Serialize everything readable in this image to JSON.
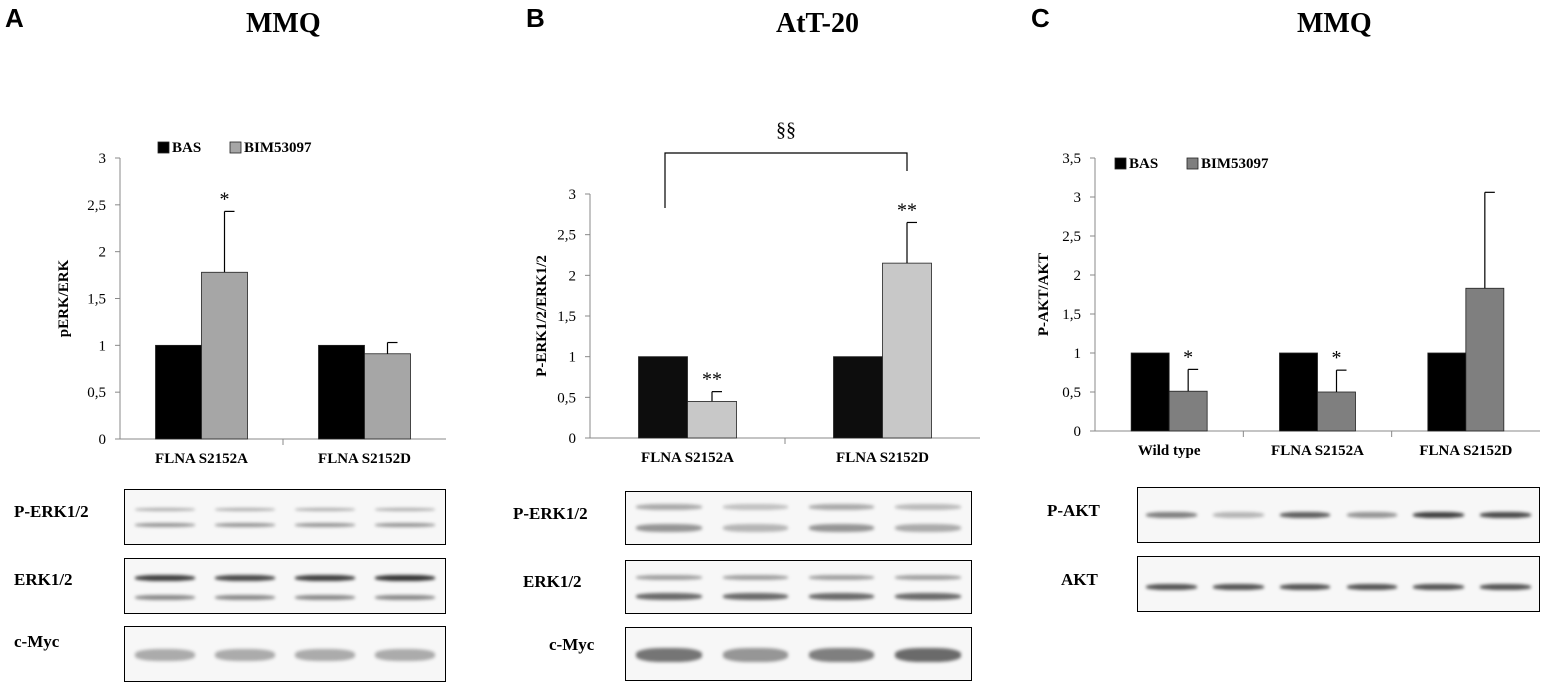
{
  "panels": [
    {
      "letter": "A",
      "title": "MMQ",
      "blot_labels": [
        "P-ERK1/2",
        "ERK1/2",
        "c-Myc"
      ]
    },
    {
      "letter": "B",
      "title": "AtT-20",
      "blot_labels": [
        "P-ERK1/2",
        "ERK1/2",
        "c-Myc"
      ]
    },
    {
      "letter": "C",
      "title": "MMQ",
      "blot_labels": [
        "P-AKT",
        "AKT"
      ]
    }
  ],
  "chart_data": [
    {
      "type": "bar",
      "ylabel": "pERK/ERK",
      "ylim": [
        0,
        3
      ],
      "yticks": [
        "0",
        "0,5",
        "1",
        "1,5",
        "2",
        "2,5",
        "3"
      ],
      "categories": [
        "FLNA S2152A",
        "FLNA S2152D"
      ],
      "series": [
        {
          "name": "BAS",
          "color": "#000000",
          "values": [
            1.0,
            1.0
          ],
          "errors": [
            0,
            0
          ]
        },
        {
          "name": "BIM53097",
          "color": "#a6a6a6",
          "values": [
            1.78,
            0.91
          ],
          "errors": [
            0.65,
            0.12
          ]
        }
      ],
      "annotations": [
        {
          "text": "*",
          "category": 0,
          "series": 1
        }
      ],
      "legend": "top-left"
    },
    {
      "type": "bar",
      "ylabel": "P-ERK1/2/ERK1/2",
      "ylim": [
        0,
        3
      ],
      "yticks": [
        "0",
        "0,5",
        "1",
        "1,5",
        "2",
        "2,5",
        "3"
      ],
      "categories": [
        "FLNA S2152A",
        "FLNA S2152D"
      ],
      "series": [
        {
          "name": "",
          "color": "#0d0d0d",
          "values": [
            1.0,
            1.0
          ],
          "errors": [
            0,
            0
          ]
        },
        {
          "name": "",
          "color": "#c8c8c8",
          "values": [
            0.45,
            2.15
          ],
          "errors": [
            0.12,
            0.5
          ]
        }
      ],
      "annotations": [
        {
          "text": "**",
          "category": 0,
          "series": 1
        },
        {
          "text": "**",
          "category": 1,
          "series": 1
        }
      ],
      "bracket": {
        "text": "§§",
        "from_category": 0,
        "to_category": 1
      }
    },
    {
      "type": "bar",
      "ylabel": "P-AKT/AKT",
      "ylim": [
        0,
        3.5
      ],
      "yticks": [
        "0",
        "0,5",
        "1",
        "1,5",
        "2",
        "2,5",
        "3",
        "3,5"
      ],
      "categories": [
        "Wild type",
        "FLNA S2152A",
        "FLNA S2152D"
      ],
      "series": [
        {
          "name": "BAS",
          "color": "#000000",
          "values": [
            1.0,
            1.0,
            1.0
          ],
          "errors": [
            0,
            0,
            0
          ]
        },
        {
          "name": "BIM53097",
          "color": "#7f7f7f",
          "values": [
            0.51,
            0.5,
            1.83
          ],
          "errors": [
            0.28,
            0.28,
            1.23
          ]
        }
      ],
      "annotations": [
        {
          "text": "*",
          "category": 0,
          "series": 1
        },
        {
          "text": "*",
          "category": 1,
          "series": 1
        }
      ],
      "legend": "top-left"
    }
  ]
}
